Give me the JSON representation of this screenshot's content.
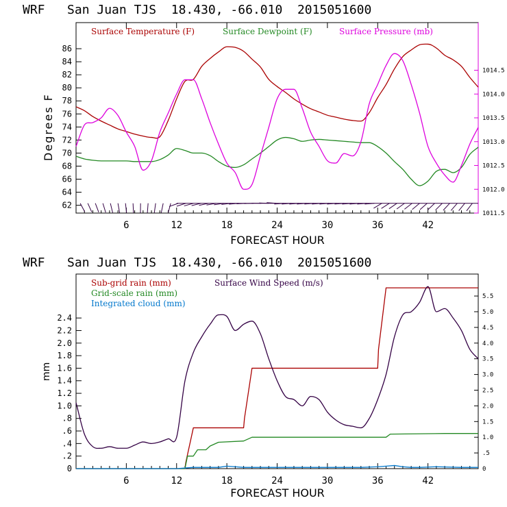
{
  "chart_data": [
    {
      "type": "line",
      "title": "WRF   San Juan TJS  18.430, -66.010  2015051600",
      "xlabel": "FORECAST HOUR",
      "ylabel": "Degrees F",
      "xlim": [
        0,
        48
      ],
      "ylim": [
        60.8,
        90
      ],
      "y2lim": [
        1011.5,
        1015.5
      ],
      "x_ticks": [
        "6",
        "12",
        "18",
        "24",
        "30",
        "36",
        "42"
      ],
      "y_ticks": [
        "62",
        "64",
        "66",
        "68",
        "70",
        "72",
        "74",
        "76",
        "78",
        "80",
        "82",
        "84",
        "86"
      ],
      "y2_ticks": [
        "1011.5",
        "1012.0",
        "1012.5",
        "1013.0",
        "1013.5",
        "1014.0",
        "1014.5"
      ],
      "legend_placement": "top",
      "colors": {
        "temperature": "#aa0000",
        "dewpoint": "#228822",
        "pressure": "#dd00dd",
        "wind": "#330044"
      },
      "series": [
        {
          "name": "Surface Temperature (F)",
          "axis": "left",
          "x": [
            0,
            1,
            2,
            3,
            4,
            5,
            6,
            7,
            8,
            9,
            10,
            11,
            12,
            13,
            14,
            15,
            16,
            17,
            18,
            19,
            20,
            21,
            22,
            23,
            24,
            25,
            26,
            27,
            28,
            29,
            30,
            31,
            32,
            33,
            34,
            35,
            36,
            37,
            38,
            39,
            40,
            41,
            42,
            43,
            44,
            45,
            46,
            47,
            48
          ],
          "values": [
            77.1,
            76.5,
            75.6,
            74.9,
            74.3,
            73.7,
            73.3,
            72.9,
            72.6,
            72.4,
            72.5,
            75.0,
            78.3,
            81.0,
            81.3,
            83.3,
            84.5,
            85.5,
            86.3,
            86.2,
            85.6,
            84.4,
            83.2,
            81.3,
            80.2,
            79.3,
            78.3,
            77.5,
            76.8,
            76.3,
            75.8,
            75.5,
            75.2,
            75.0,
            74.9,
            76.2,
            78.5,
            80.5,
            82.9,
            84.8,
            85.8,
            86.6,
            86.7,
            86.1,
            85.0,
            84.3,
            83.3,
            81.6,
            80.1
          ]
        },
        {
          "name": "Surface Dewpoint (F)",
          "axis": "left",
          "x": [
            0,
            1,
            2,
            3,
            4,
            5,
            6,
            7,
            8,
            9,
            10,
            11,
            12,
            13,
            14,
            15,
            16,
            17,
            18,
            19,
            20,
            21,
            22,
            23,
            24,
            25,
            26,
            27,
            28,
            29,
            30,
            31,
            32,
            33,
            34,
            35,
            36,
            37,
            38,
            39,
            40,
            41,
            42,
            43,
            44,
            45,
            46,
            47,
            48
          ],
          "values": [
            69.5,
            69.1,
            68.9,
            68.8,
            68.8,
            68.8,
            68.8,
            68.7,
            68.7,
            68.7,
            69.0,
            69.7,
            70.7,
            70.4,
            70.0,
            70.0,
            69.6,
            68.7,
            68.0,
            67.8,
            68.2,
            69.1,
            70.0,
            71.0,
            72.0,
            72.4,
            72.2,
            71.8,
            72.0,
            72.1,
            72.0,
            71.9,
            71.8,
            71.7,
            71.6,
            71.6,
            71.0,
            70.0,
            68.7,
            67.5,
            66.0,
            65.0,
            65.7,
            67.2,
            67.5,
            67.0,
            67.8,
            69.8,
            70.9
          ]
        },
        {
          "name": "Surface Pressure (mb)",
          "axis": "right",
          "x": [
            0,
            1,
            2,
            3,
            4,
            5,
            6,
            7,
            8,
            9,
            10,
            11,
            12,
            13,
            14,
            15,
            16,
            17,
            18,
            19,
            20,
            21,
            22,
            23,
            24,
            25,
            26,
            27,
            28,
            29,
            30,
            31,
            32,
            33,
            34,
            35,
            36,
            37,
            38,
            39,
            40,
            41,
            42,
            43,
            44,
            45,
            46,
            47,
            48
          ],
          "values": [
            1012.9,
            1013.35,
            1013.4,
            1013.5,
            1013.7,
            1013.55,
            1013.2,
            1012.9,
            1012.4,
            1012.6,
            1013.2,
            1013.6,
            1014.0,
            1014.3,
            1014.3,
            1013.9,
            1013.4,
            1012.95,
            1012.55,
            1012.35,
            1012.0,
            1012.1,
            1012.7,
            1013.3,
            1013.9,
            1014.1,
            1014.1,
            1013.7,
            1013.2,
            1012.9,
            1012.6,
            1012.55,
            1012.75,
            1012.7,
            1013.0,
            1013.8,
            1014.2,
            1014.6,
            1014.85,
            1014.7,
            1014.2,
            1013.6,
            1012.9,
            1012.55,
            1012.3,
            1012.15,
            1012.5,
            1012.95,
            1013.3
          ]
        }
      ]
    },
    {
      "type": "line",
      "title": "WRF   San Juan TJS  18.430, -66.010  2015051600",
      "xlabel": "FORECAST HOUR",
      "ylabel": "mm",
      "xlim": [
        0,
        48
      ],
      "ylim": [
        0,
        3.1
      ],
      "y2lim": [
        0,
        6.2
      ],
      "x_ticks": [
        "6",
        "12",
        "18",
        "24",
        "30",
        "36",
        "42"
      ],
      "y_ticks": [
        "0",
        ".2",
        ".4",
        ".6",
        ".8",
        "1.0",
        "1.2",
        "1.4",
        "1.6",
        "1.8",
        "2.0",
        "2.2",
        "2.4"
      ],
      "y2_ticks": [
        "0",
        ".5",
        "1.0",
        "1.5",
        "2.0",
        "2.5",
        "3.0",
        "3.5",
        "4.0",
        "4.5",
        "5.0",
        "5.5"
      ],
      "legend_placement": "top-left",
      "colors": {
        "subgrid": "#aa0000",
        "gridscale": "#228822",
        "cloud": "#0077cc",
        "wind": "#330044"
      },
      "series": [
        {
          "name": "Sub-grid rain (mm)",
          "axis": "left",
          "x": [
            0,
            13,
            13.1,
            14,
            14.1,
            20,
            20.1,
            21,
            21.1,
            36,
            36.1,
            37,
            37.1,
            48
          ],
          "values": [
            0,
            0,
            0.1,
            0.65,
            0.65,
            0.65,
            0.8,
            1.6,
            1.6,
            1.6,
            1.9,
            2.88,
            2.88,
            2.88
          ]
        },
        {
          "name": "Grid-scale rain (mm)",
          "axis": "left",
          "x": [
            0,
            13,
            13.3,
            14,
            14.5,
            15.5,
            16,
            17,
            20,
            21,
            23,
            30,
            35,
            37,
            37.5,
            44,
            48
          ],
          "values": [
            0,
            0,
            0.2,
            0.2,
            0.3,
            0.3,
            0.36,
            0.42,
            0.44,
            0.5,
            0.5,
            0.5,
            0.5,
            0.5,
            0.55,
            0.56,
            0.56
          ]
        },
        {
          "name": "Integrated cloud (mm)",
          "axis": "left",
          "x": [
            0,
            12,
            13,
            14,
            15,
            17,
            18,
            19,
            20,
            22,
            26,
            30,
            34,
            36,
            37,
            38,
            39,
            40,
            41,
            43,
            46,
            48
          ],
          "values": [
            0,
            0,
            0.01,
            0.02,
            0.02,
            0.02,
            0.04,
            0.03,
            0.02,
            0.02,
            0.02,
            0.02,
            0.02,
            0.03,
            0.04,
            0.05,
            0.03,
            0.02,
            0.02,
            0.03,
            0.02,
            0.02
          ]
        },
        {
          "name": "Surface Wind Speed (m/s)",
          "axis": "right",
          "x": [
            0,
            1,
            2,
            3,
            4,
            5,
            6,
            7,
            8,
            9,
            10,
            11,
            12,
            13,
            14,
            15,
            16,
            17,
            18,
            19,
            20,
            21,
            22,
            23,
            24,
            25,
            26,
            27,
            28,
            29,
            30,
            31,
            32,
            33,
            34,
            35,
            36,
            37,
            38,
            39,
            40,
            41,
            42,
            43,
            44,
            45,
            46,
            47,
            48
          ],
          "values": [
            2.1,
            1.1,
            0.7,
            0.65,
            0.7,
            0.65,
            0.65,
            0.75,
            0.85,
            0.8,
            0.85,
            0.95,
            1.0,
            2.8,
            3.7,
            4.2,
            4.6,
            4.9,
            4.85,
            4.4,
            4.6,
            4.7,
            4.3,
            3.5,
            2.8,
            2.3,
            2.2,
            2.0,
            2.3,
            2.2,
            1.8,
            1.55,
            1.4,
            1.35,
            1.3,
            1.6,
            2.2,
            3.0,
            4.2,
            4.9,
            5.0,
            5.3,
            5.8,
            5.0,
            5.1,
            4.8,
            4.4,
            3.8,
            3.5
          ]
        }
      ]
    }
  ]
}
